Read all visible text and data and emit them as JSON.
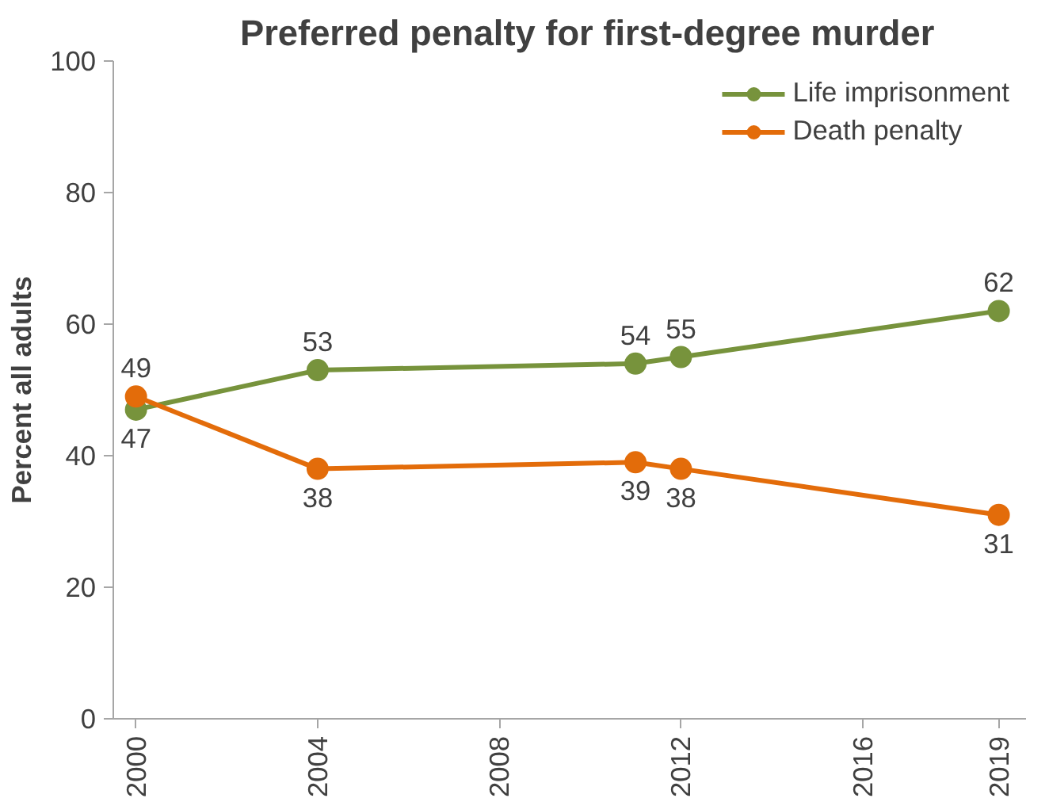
{
  "chart_data": {
    "type": "line",
    "title": "Preferred penalty for first-degree murder",
    "ylabel": "Percent all adults",
    "x": [
      2000,
      2004,
      2011,
      2012,
      2019
    ],
    "series": [
      {
        "name": "Life imprisonment",
        "color": "#77933c",
        "values": [
          47,
          53,
          54,
          55,
          62
        ]
      },
      {
        "name": "Death penalty",
        "color": "#e36c0a",
        "values": [
          49,
          38,
          39,
          38,
          31
        ]
      }
    ],
    "xlim": [
      1999.5,
      2019.6
    ],
    "xticks": [
      2000,
      2004,
      2008,
      2012,
      2016,
      2019
    ],
    "ylim": [
      0,
      100
    ],
    "yticks": [
      0,
      20,
      40,
      60,
      80,
      100
    ],
    "grid": false,
    "legend": "top right",
    "marker": "circle",
    "line_style": "solid",
    "data_labels": true
  }
}
